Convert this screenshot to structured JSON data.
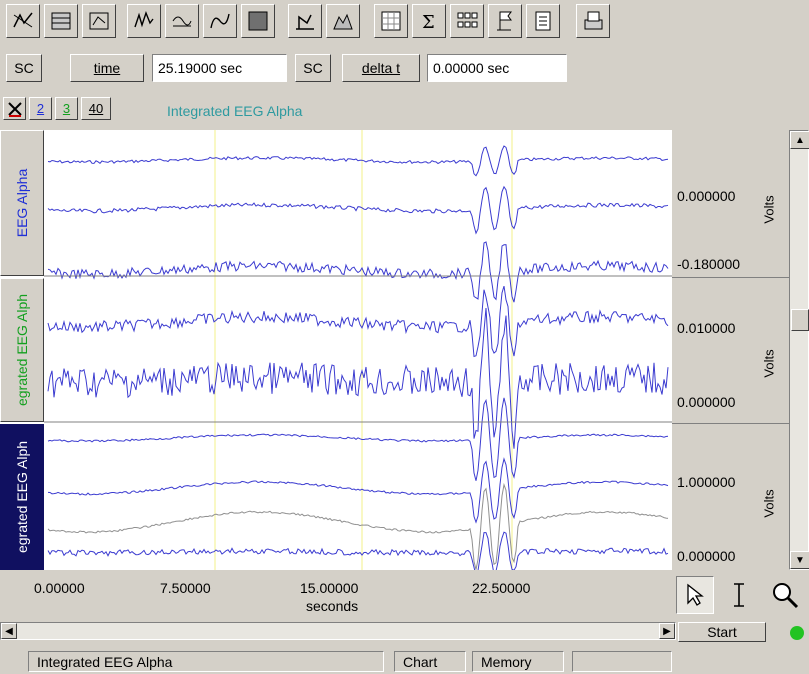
{
  "toolbar": {
    "buttons": [
      {
        "name": "scope-toggle-icon"
      },
      {
        "name": "hatch-fill-icon"
      },
      {
        "name": "trace-cursor-icon"
      },
      {
        "name": "waveform-icon"
      },
      {
        "name": "overlay-icon"
      },
      {
        "name": "curve-icon"
      },
      {
        "name": "solid-block-icon"
      },
      {
        "name": "scale-chart-icon"
      },
      {
        "name": "mountain-chart-icon"
      },
      {
        "name": "grid-icon"
      },
      {
        "name": "sigma-icon"
      },
      {
        "name": "channels-grid-icon"
      },
      {
        "name": "flag-icon"
      },
      {
        "name": "notebook-icon"
      },
      {
        "name": "print-icon"
      }
    ]
  },
  "cursor_row": {
    "sc1_label": "SC",
    "time_label": "time",
    "time_value": "25.19000 sec",
    "sc2_label": "SC",
    "delta_label": "delta t",
    "delta_value": "0.00000 sec"
  },
  "channel_row": {
    "buttons": [
      "2",
      "3",
      "40"
    ],
    "title": "Integrated EEG Alpha"
  },
  "channels": [
    {
      "label": "EEG Alpha",
      "color": "#1f2fd6",
      "scale_top": "0.000000",
      "scale_bottom": "-0.180000",
      "unit": "Volts"
    },
    {
      "label": "egrated EEG Alph",
      "color": "#14a020",
      "scale_top": "0.010000",
      "scale_bottom": "0.000000",
      "unit": "Volts"
    },
    {
      "label": "egrated EEG Alph",
      "color": "#ffffff",
      "scale_top": "1.000000",
      "scale_bottom": "0.000000",
      "unit": "Volts"
    }
  ],
  "x_axis": {
    "ticks": [
      "0.00000",
      "7.50000",
      "15.00000",
      "22.50000"
    ],
    "unit": "seconds"
  },
  "tools": [
    {
      "name": "arrow-cursor-icon"
    },
    {
      "name": "ibeam-cursor-icon"
    },
    {
      "name": "zoom-icon"
    }
  ],
  "start_label": "Start",
  "status_bar": {
    "channel": "Integrated EEG Alpha",
    "mode": "Chart",
    "memory": "Memory"
  },
  "colors": {
    "trace": "#3b3bd0",
    "gray_trace": "#909090",
    "marker": "#f3f08a"
  }
}
